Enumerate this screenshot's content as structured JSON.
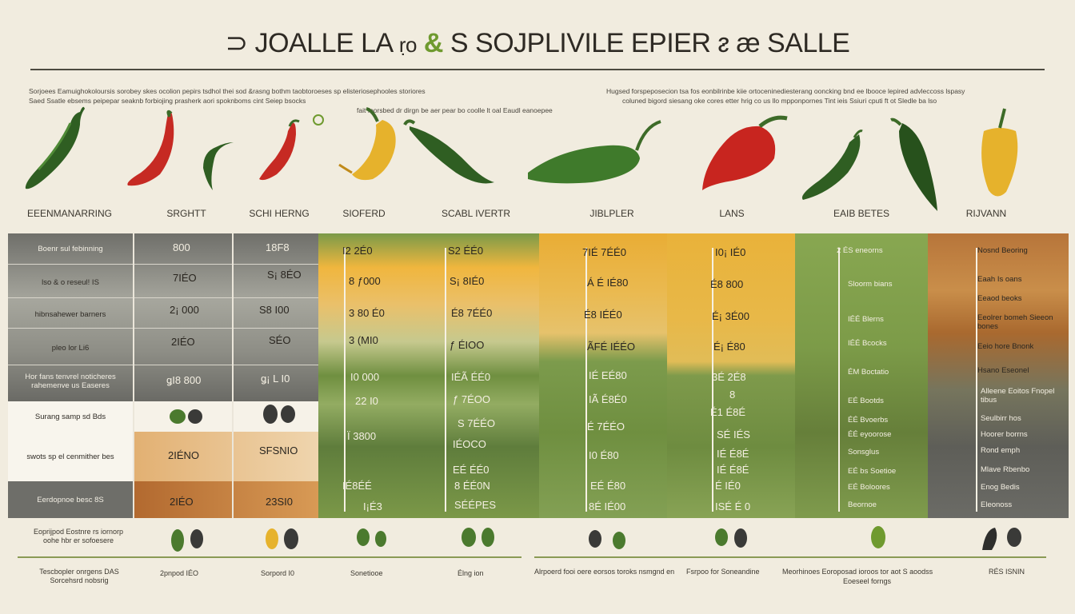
{
  "title": {
    "part1": "⊃ JOALLE LA",
    "part2": "ṛo",
    "amp": "&",
    "part3": "S SOJPLIVILE EPIER",
    "part4": "ᴤ æ SALLE"
  },
  "intro": {
    "left_line1": "Sorjoees Eamuighokoloursis sorobey skes ocolion pepirs tsdhol thei sod &rasng bothm taobtoroeses sp elisteriosephooles storiores",
    "left_line2": "Saed Ssatle ebsems peipepar seaknb forbiojing prasherk aori spoknboms cint Seiep bsocks",
    "left_line3": "fait foorsbed dr dirgn be aer pear bo coolle lt oal Eaudl eanoepee",
    "right_line1": "Hugsed forspeposecion tsa fos eonbilrinbe kiie ortoceninediesterang ooncking bnd ee lbooce lepired advleccoss lspasy",
    "right_line2": "coluned bigord siesang oke cores etter hrig co us llo mpponpornes Tint ieis Ssiuri cputi ft ot Sledle ba lso"
  },
  "columns": [
    {
      "label": "EEENMANARRING"
    },
    {
      "label": "SRGHTT"
    },
    {
      "label": "SCHI HERNG"
    },
    {
      "label": "SIOFERD"
    },
    {
      "label": "SCABL IVERTR"
    },
    {
      "label": "JIBLPLER"
    },
    {
      "label": "LANS"
    },
    {
      "label": "EAIB BETES"
    },
    {
      "label": "RIJVANN"
    }
  ],
  "row_labels": [
    "Boenr sul febinning",
    "lso & o reseul! IS",
    "hibnsahewer barners",
    "pleo lor Li6",
    "Hor fans tenvrel noticheres rahemenve us Easeres",
    "Surang samp sd Bds",
    "swots sp el cenmither bes",
    "Eerdopnoe besc 8S"
  ],
  "values": {
    "c1": [
      "800",
      "7IÉO",
      "2¡ 000",
      "2IÉO",
      "ǥI8 800",
      "",
      "2IÉNO",
      "2IÉO"
    ],
    "c2": [
      "18F8",
      "S¡ 8ÉO",
      "S8 I00",
      "SÉO",
      "ǥ¡ L I0",
      "",
      "SFSNIO",
      "23SI0"
    ],
    "c3": [
      "I2 2É0",
      "8 ƒ000",
      "3 80 É0",
      "3 (MI0",
      "I0 000",
      "22 I0",
      "Ï 3800",
      "IÉ8ÉÉ",
      "I¡É3"
    ],
    "c4": [
      "S2 ÉÉ0",
      "S¡ 8IÉ0",
      "É8 7ÉÉ0",
      "ƒ ÉIOO",
      "IÉÃ ÉÉ0",
      "ƒ 7ÉOO",
      "S 7ÉÉO",
      "IÉOCO",
      "EÉ ÉÉ0",
      "8 ÉÉ0N",
      "SÉÉPES"
    ],
    "c5": [
      "7IÉ 7ÉÉ0",
      "Á É IÉ80",
      "É8 IÉÉ0",
      "ÃFÉ IÉÉO",
      "IÉ EÉ80",
      "IÃ É8É0",
      "É 7ÉÉO",
      "I0 É80",
      "EÉ É80",
      "8É IÉ00"
    ],
    "c6": [
      "I0¡ IÉ0",
      "É8 800",
      "É¡ 3É00",
      "É¡ É80",
      "3É 2É8",
      "8",
      "É1 É8É",
      "SÉ IÉS",
      "IÉ É8É",
      "IÉ É8É",
      "É IÉ0",
      "ISÉ É 0"
    ]
  },
  "right_notes_c7": [
    "2 ÉS eneorns",
    "Sloorm bians",
    "IÉÉ Blerns",
    "IÉÉ Bcocks",
    "ÉM Boctatio",
    "EÉ Bootds",
    "ÉÉ Bvoerbs",
    "ÉÉ eyoorose",
    "Sonsglus",
    "EÉ bs Soetioe",
    "EÉ Boloores",
    "Beornoe"
  ],
  "right_notes_c8": [
    "Nosnd Beoring",
    "Eaah Is oans",
    "Eeaod beoks",
    "Eeolrer bomeh Sieeon bones",
    "Eeio hore Bnonk",
    "Hsano Eseonel",
    "Alleene Eoitos Fnopel tibus",
    "Seulbirr hos",
    "Hoorer borrns",
    "Rond emph",
    "Mlave Rbenbo",
    "Enog Bedis",
    "Eleonoss"
  ],
  "footer": {
    "left_line1": "Eoprijpod Eostnre rs iornorp",
    "left_line2": "oohe hbr er sofoesere",
    "bot_left1": "Tescbopler onrgens DAS",
    "bot_left2": "Sorcehsrd nobsrig",
    "bot_c1": "2pnpod IÉO",
    "bot_c2": "Sorpord I0",
    "bot_c3": "Sonetiooe",
    "bot_c4": "Élng ion",
    "bot_mid1": "Alrpoerd fooi oere eorsos toroks nsmgnd en",
    "bot_mid2": "Fsrpoo for Soneandine",
    "bot_mid3": "Meorhinoes Eoroposad ioroos tor aot S aoodss",
    "bot_mid4": "Eoeseel forngs",
    "bot_right": "RÉS ISNIN"
  },
  "colors": {
    "background": "#f1ecdf",
    "gray_dark": "#6f6f6a",
    "gray_light": "#a8a89e",
    "green_dark": "#5f7d3c",
    "green_mid": "#7b9848",
    "yellow": "#e9b23a",
    "orange": "#d88c33",
    "brown": "#b7753a",
    "red_pepper": "#c9302a",
    "green_pepper": "#3d6b28"
  }
}
